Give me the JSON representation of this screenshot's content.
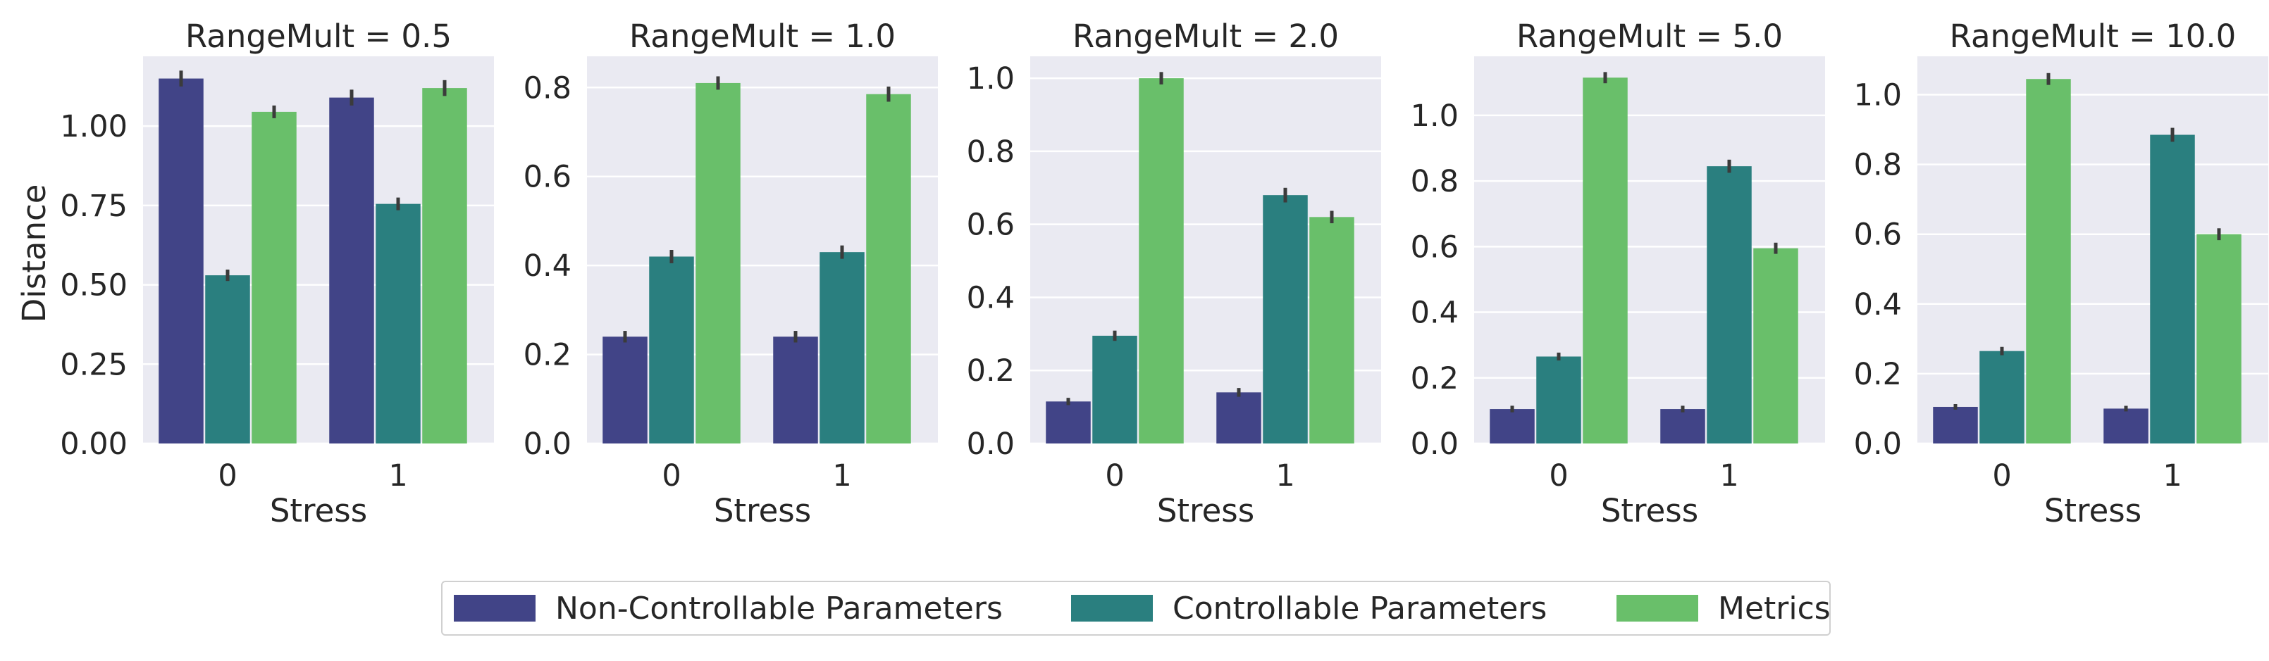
{
  "chart_data": {
    "type": "bar",
    "title": "",
    "xlabel": "Stress",
    "ylabel": "Distance",
    "categories": [
      "0",
      "1"
    ],
    "series_names": [
      "Non-Controllable Parameters",
      "Controllable Parameters",
      "Metrics"
    ],
    "colors": [
      "#414487",
      "#2a7f7f",
      "#69bf6a"
    ],
    "grid": true,
    "legend_position": "bottom-center",
    "panels": [
      {
        "title": "RangeMult = 0.5",
        "ylim": [
          0,
          1.22
        ],
        "yticks": [
          "0.00",
          "0.25",
          "0.50",
          "0.75",
          "1.00"
        ],
        "ytick_values": [
          0,
          0.25,
          0.5,
          0.75,
          1.0
        ],
        "series": [
          {
            "name": "Non-Controllable Parameters",
            "values": [
              1.15,
              1.09
            ],
            "err": [
              0.025,
              0.025
            ]
          },
          {
            "name": "Controllable Parameters",
            "values": [
              0.53,
              0.755
            ],
            "err": [
              0.018,
              0.02
            ]
          },
          {
            "name": "Metrics",
            "values": [
              1.045,
              1.12
            ],
            "err": [
              0.02,
              0.025
            ]
          }
        ]
      },
      {
        "title": "RangeMult = 1.0",
        "ylim": [
          0,
          0.87
        ],
        "yticks": [
          "0.0",
          "0.2",
          "0.4",
          "0.6",
          "0.8"
        ],
        "ytick_values": [
          0,
          0.2,
          0.4,
          0.6,
          0.8
        ],
        "series": [
          {
            "name": "Non-Controllable Parameters",
            "values": [
              0.24,
              0.24
            ],
            "err": [
              0.013,
              0.013
            ]
          },
          {
            "name": "Controllable Parameters",
            "values": [
              0.42,
              0.43
            ],
            "err": [
              0.015,
              0.015
            ]
          },
          {
            "name": "Metrics",
            "values": [
              0.81,
              0.785
            ],
            "err": [
              0.015,
              0.017
            ]
          }
        ]
      },
      {
        "title": "RangeMult = 2.0",
        "ylim": [
          0,
          1.06
        ],
        "yticks": [
          "0.0",
          "0.2",
          "0.4",
          "0.6",
          "0.8",
          "1.0"
        ],
        "ytick_values": [
          0,
          0.2,
          0.4,
          0.6,
          0.8,
          1.0
        ],
        "series": [
          {
            "name": "Non-Controllable Parameters",
            "values": [
              0.115,
              0.14
            ],
            "err": [
              0.01,
              0.012
            ]
          },
          {
            "name": "Controllable Parameters",
            "values": [
              0.295,
              0.68
            ],
            "err": [
              0.014,
              0.02
            ]
          },
          {
            "name": "Metrics",
            "values": [
              1.0,
              0.62
            ],
            "err": [
              0.017,
              0.017
            ]
          }
        ]
      },
      {
        "title": "RangeMult = 5.0",
        "ylim": [
          0,
          1.18
        ],
        "yticks": [
          "0.0",
          "0.2",
          "0.4",
          "0.6",
          "0.8",
          "1.0"
        ],
        "ytick_values": [
          0,
          0.2,
          0.4,
          0.6,
          0.8,
          1.0
        ],
        "series": [
          {
            "name": "Non-Controllable Parameters",
            "values": [
              0.105,
              0.105
            ],
            "err": [
              0.01,
              0.01
            ]
          },
          {
            "name": "Controllable Parameters",
            "values": [
              0.265,
              0.845
            ],
            "err": [
              0.012,
              0.02
            ]
          },
          {
            "name": "Metrics",
            "values": [
              1.115,
              0.595
            ],
            "err": [
              0.017,
              0.017
            ]
          }
        ]
      },
      {
        "title": "RangeMult = 10.0",
        "ylim": [
          0,
          1.11
        ],
        "yticks": [
          "0.0",
          "0.2",
          "0.4",
          "0.6",
          "0.8",
          "1.0"
        ],
        "ytick_values": [
          0,
          0.2,
          0.4,
          0.6,
          0.8,
          1.0
        ],
        "series": [
          {
            "name": "Non-Controllable Parameters",
            "values": [
              0.105,
              0.1
            ],
            "err": [
              0.008,
              0.008
            ]
          },
          {
            "name": "Controllable Parameters",
            "values": [
              0.265,
              0.885
            ],
            "err": [
              0.012,
              0.02
            ]
          },
          {
            "name": "Metrics",
            "values": [
              1.045,
              0.6
            ],
            "err": [
              0.017,
              0.017
            ]
          }
        ]
      }
    ]
  }
}
